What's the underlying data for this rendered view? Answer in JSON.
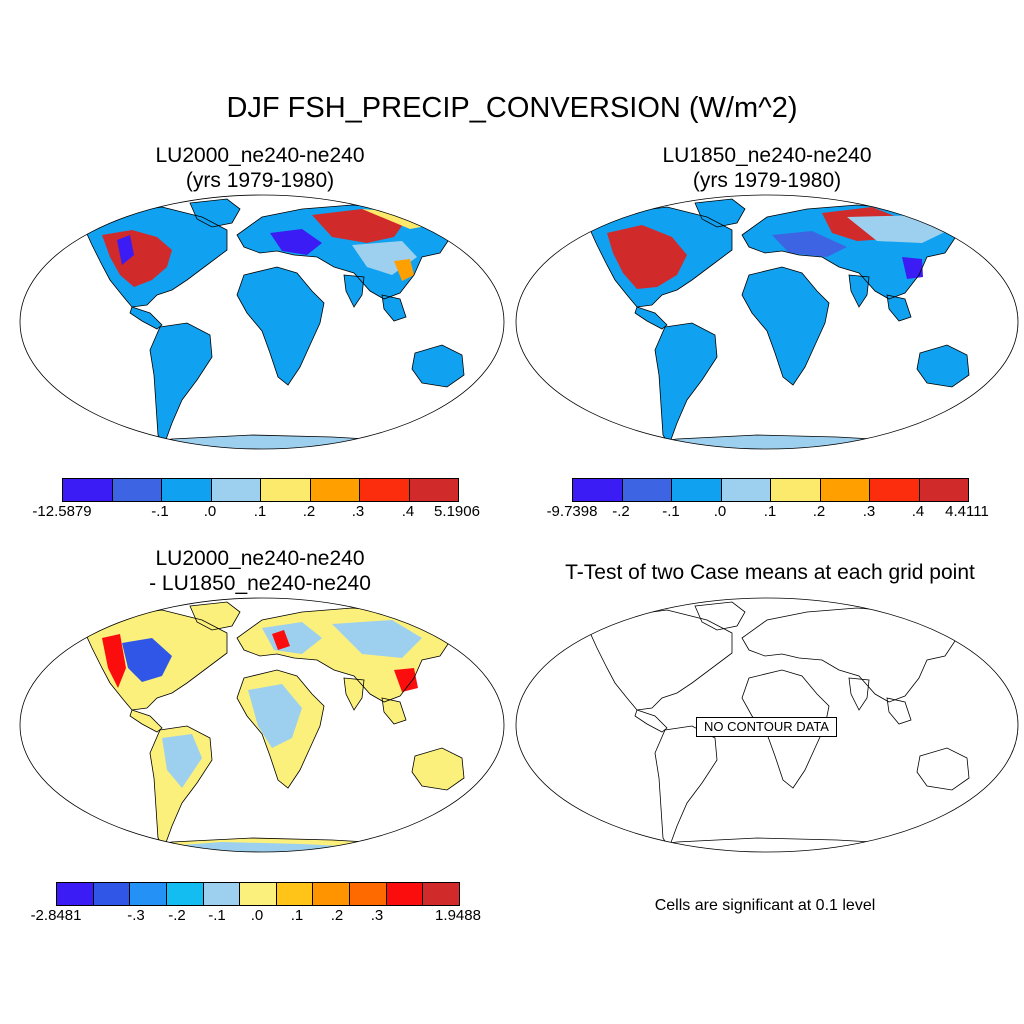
{
  "title": "DJF FSH_PRECIP_CONVERSION (W/m^2)",
  "panels": [
    {
      "id": "tl",
      "title_lines": [
        "LU2000_ne240-ne240",
        "(yrs 1979-1980)"
      ],
      "colorbar": {
        "colors": [
          "#3b1cf5",
          "#3c64e3",
          "#10a2f0",
          "#9dd0ef",
          "#fbea6c",
          "#ff9f00",
          "#fc2d0c",
          "#d12a2a"
        ],
        "labels": [
          "-12.5879",
          "-.1",
          ".0",
          ".1",
          ".2",
          ".3",
          ".4",
          "5.1906"
        ]
      }
    },
    {
      "id": "tr",
      "title_lines": [
        "LU1850_ne240-ne240",
        "(yrs 1979-1980)"
      ],
      "colorbar": {
        "colors": [
          "#3b1cf5",
          "#3c64e3",
          "#10a2f0",
          "#9dd0ef",
          "#fbea6c",
          "#ff9f00",
          "#fc2d0c",
          "#d12a2a"
        ],
        "labels": [
          "-9.7398",
          "-.2",
          "-.1",
          ".0",
          ".1",
          ".2",
          ".3",
          ".4",
          "4.4111"
        ]
      }
    },
    {
      "id": "bl",
      "title_lines": [
        "LU2000_ne240-ne240",
        "- LU1850_ne240-ne240"
      ],
      "colorbar": {
        "colors": [
          "#3b1cf5",
          "#2f56e6",
          "#2391f5",
          "#13bdf2",
          "#9dd0ef",
          "#fcf07c",
          "#ffc417",
          "#ff9400",
          "#ff6a00",
          "#fb0d0d",
          "#d12a2a"
        ],
        "labels": [
          "-2.8481",
          "-.3",
          "-.2",
          "-.1",
          ".0",
          ".1",
          ".2",
          ".3",
          "1.9488"
        ]
      }
    },
    {
      "id": "br",
      "title_lines": [
        "T-Test of two Case means at each grid point"
      ],
      "nodata_label": "NO CONTOUR DATA",
      "note": "Cells are significant at 0.1 level"
    }
  ]
}
